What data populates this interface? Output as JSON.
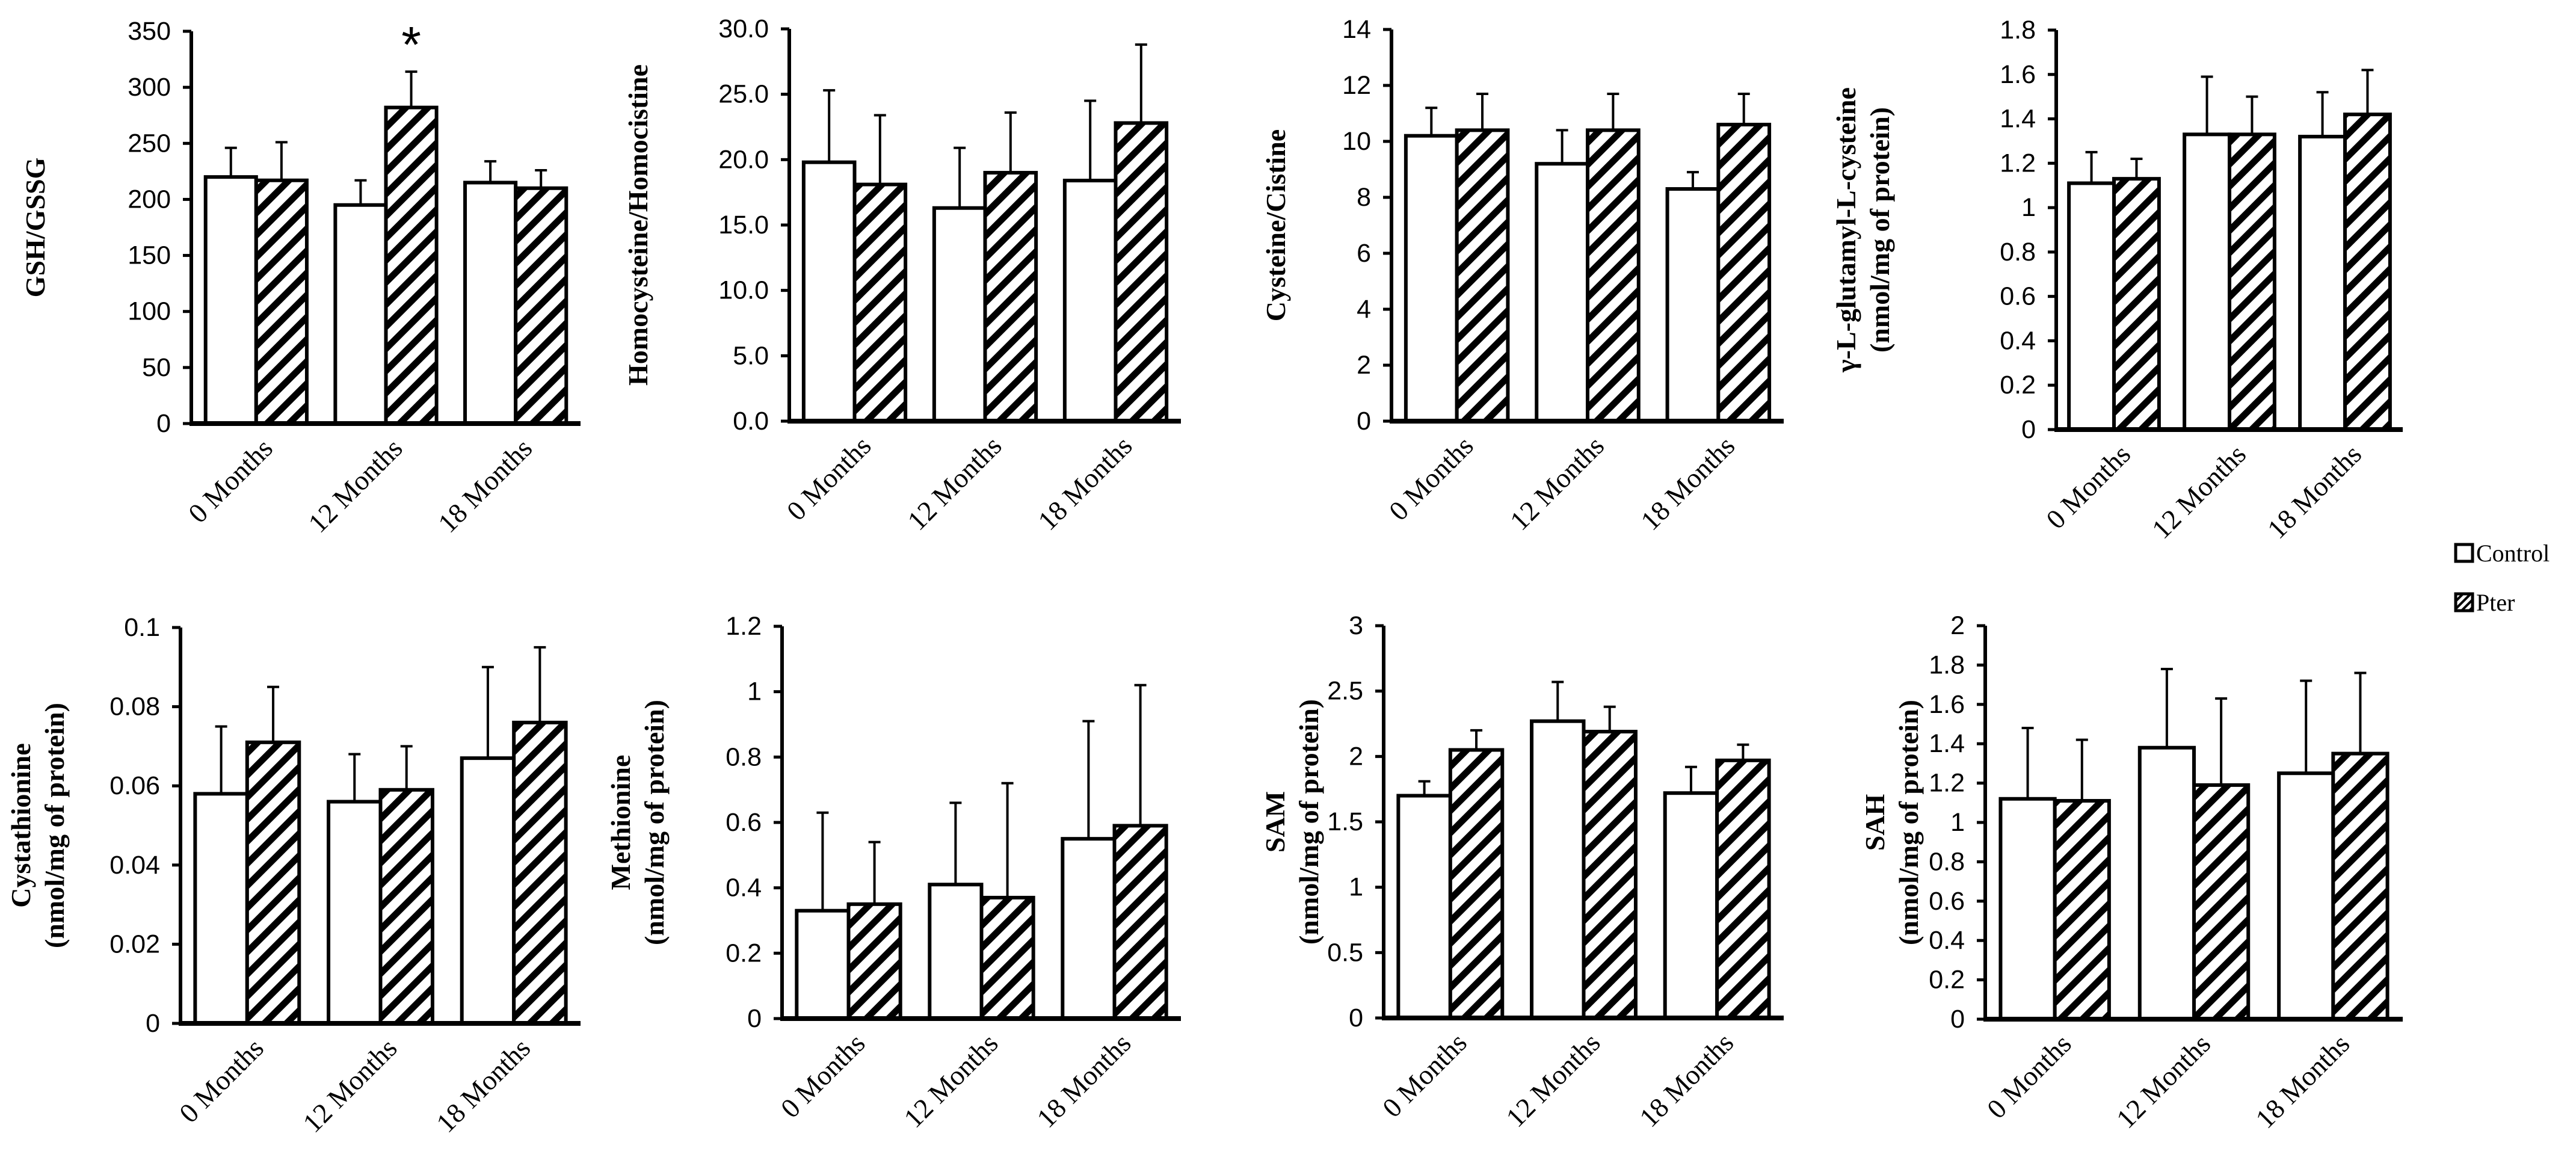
{
  "legend": {
    "items": [
      {
        "label": "Control",
        "pattern": "plain"
      },
      {
        "label": "Pter",
        "pattern": "hatch"
      }
    ]
  },
  "colors": {
    "bar_fill": "#ffffff",
    "stroke": "#000000"
  },
  "chart_data": [
    {
      "type": "bar",
      "ylabel_lines": [
        "GSH/GSSG"
      ],
      "categories": [
        "0 Months",
        "12 Months",
        "18 Months"
      ],
      "ylim": [
        0,
        350
      ],
      "yticks": [
        0,
        50,
        100,
        150,
        200,
        250,
        300,
        350
      ],
      "ytick_labels": [
        "0",
        "50",
        "100",
        "150",
        "200",
        "250",
        "300",
        "350"
      ],
      "series": [
        {
          "name": "Control",
          "values": [
            220,
            195,
            215
          ],
          "errors": [
            26,
            22,
            19
          ]
        },
        {
          "name": "Pter",
          "values": [
            217,
            282,
            210
          ],
          "errors": [
            34,
            32,
            16
          ]
        }
      ],
      "annotations": [
        {
          "text": "*",
          "category": 1,
          "series": 1
        }
      ]
    },
    {
      "type": "bar",
      "ylabel_lines": [
        "Homocysteine/Homocistine"
      ],
      "categories": [
        "0 Months",
        "12 Months",
        "18 Months"
      ],
      "ylim": [
        0,
        30
      ],
      "yticks": [
        0,
        5,
        10,
        15,
        20,
        25,
        30
      ],
      "ytick_labels": [
        "0.0",
        "5.0",
        "10.0",
        "15.0",
        "20.0",
        "25.0",
        "30.0"
      ],
      "series": [
        {
          "name": "Control",
          "values": [
            19.8,
            16.3,
            18.4
          ],
          "errors": [
            5.5,
            4.6,
            6.1
          ]
        },
        {
          "name": "Pter",
          "values": [
            18.1,
            19.0,
            22.8
          ],
          "errors": [
            5.3,
            4.6,
            6.0
          ]
        }
      ],
      "annotations": []
    },
    {
      "type": "bar",
      "ylabel_lines": [
        "Cysteine/Cistine"
      ],
      "categories": [
        "0 Months",
        "12 Months",
        "18 Months"
      ],
      "ylim": [
        0,
        14
      ],
      "yticks": [
        0,
        2,
        4,
        6,
        8,
        10,
        12,
        14
      ],
      "ytick_labels": [
        "0",
        "2",
        "4",
        "6",
        "8",
        "10",
        "12",
        "14"
      ],
      "series": [
        {
          "name": "Control",
          "values": [
            10.2,
            9.2,
            8.3
          ],
          "errors": [
            1.0,
            1.2,
            0.6
          ]
        },
        {
          "name": "Pter",
          "values": [
            10.4,
            10.4,
            10.6
          ],
          "errors": [
            1.3,
            1.3,
            1.1
          ]
        }
      ],
      "annotations": []
    },
    {
      "type": "bar",
      "ylabel_lines": [
        "γ-L-glutamyl-L-cysteine",
        "(nmol/mg of protein)"
      ],
      "categories": [
        "0 Months",
        "12 Months",
        "18 Months"
      ],
      "ylim": [
        0,
        1.8
      ],
      "yticks": [
        0,
        0.2,
        0.4,
        0.6,
        0.8,
        1.0,
        1.2,
        1.4,
        1.6,
        1.8
      ],
      "ytick_labels": [
        "0",
        "0.2",
        "0.4",
        "0.6",
        "0.8",
        "1",
        "1.2",
        "1.4",
        "1.6",
        "1.8"
      ],
      "series": [
        {
          "name": "Control",
          "values": [
            1.11,
            1.33,
            1.32
          ],
          "errors": [
            0.14,
            0.26,
            0.2
          ]
        },
        {
          "name": "Pter",
          "values": [
            1.13,
            1.33,
            1.42
          ],
          "errors": [
            0.09,
            0.17,
            0.2
          ]
        }
      ],
      "annotations": []
    },
    {
      "type": "bar",
      "ylabel_lines": [
        "Cystathionine",
        "(nmol/mg of protein)"
      ],
      "categories": [
        "0 Months",
        "12 Months",
        "18 Months"
      ],
      "ylim": [
        0,
        0.1
      ],
      "yticks": [
        0,
        0.02,
        0.04,
        0.06,
        0.08,
        0.1
      ],
      "ytick_labels": [
        "0",
        "0.02",
        "0.04",
        "0.06",
        "0.08",
        "0.1"
      ],
      "series": [
        {
          "name": "Control",
          "values": [
            0.058,
            0.056,
            0.067
          ],
          "errors": [
            0.017,
            0.012,
            0.023
          ]
        },
        {
          "name": "Pter",
          "values": [
            0.071,
            0.059,
            0.076
          ],
          "errors": [
            0.014,
            0.011,
            0.019
          ]
        }
      ],
      "annotations": []
    },
    {
      "type": "bar",
      "ylabel_lines": [
        "Methionine",
        "(nmol/mg of protein)"
      ],
      "categories": [
        "0 Months",
        "12 Months",
        "18 Months"
      ],
      "ylim": [
        0,
        1.2
      ],
      "yticks": [
        0,
        0.2,
        0.4,
        0.6,
        0.8,
        1.0,
        1.2
      ],
      "ytick_labels": [
        "0",
        "0.2",
        "0.4",
        "0.6",
        "0.8",
        "1",
        "1.2"
      ],
      "series": [
        {
          "name": "Control",
          "values": [
            0.33,
            0.41,
            0.55
          ],
          "errors": [
            0.3,
            0.25,
            0.36
          ]
        },
        {
          "name": "Pter",
          "values": [
            0.35,
            0.37,
            0.59
          ],
          "errors": [
            0.19,
            0.35,
            0.43
          ]
        }
      ],
      "annotations": []
    },
    {
      "type": "bar",
      "ylabel_lines": [
        "SAM",
        "(nmol/mg of protein)"
      ],
      "categories": [
        "0 Months",
        "12 Months",
        "18 Months"
      ],
      "ylim": [
        0,
        3
      ],
      "yticks": [
        0,
        0.5,
        1.0,
        1.5,
        2.0,
        2.5,
        3.0
      ],
      "ytick_labels": [
        "0",
        "0.5",
        "1",
        "1.5",
        "2",
        "2.5",
        "3"
      ],
      "series": [
        {
          "name": "Control",
          "values": [
            1.7,
            2.27,
            1.72
          ],
          "errors": [
            0.11,
            0.3,
            0.2
          ]
        },
        {
          "name": "Pter",
          "values": [
            2.05,
            2.19,
            1.97
          ],
          "errors": [
            0.15,
            0.19,
            0.12
          ]
        }
      ],
      "annotations": []
    },
    {
      "type": "bar",
      "ylabel_lines": [
        "SAH",
        "(nmol/mg of protein)"
      ],
      "categories": [
        "0 Months",
        "12 Months",
        "18 Months"
      ],
      "ylim": [
        0,
        2
      ],
      "yticks": [
        0,
        0.2,
        0.4,
        0.6,
        0.8,
        1.0,
        1.2,
        1.4,
        1.6,
        1.8,
        2.0
      ],
      "ytick_labels": [
        "0",
        "0.2",
        "0.4",
        "0.6",
        "0.8",
        "1",
        "1.2",
        "1.4",
        "1.6",
        "1.8",
        "2"
      ],
      "series": [
        {
          "name": "Control",
          "values": [
            1.12,
            1.38,
            1.25
          ],
          "errors": [
            0.36,
            0.4,
            0.47
          ]
        },
        {
          "name": "Pter",
          "values": [
            1.11,
            1.19,
            1.35
          ],
          "errors": [
            0.31,
            0.44,
            0.41
          ]
        }
      ],
      "annotations": []
    }
  ]
}
